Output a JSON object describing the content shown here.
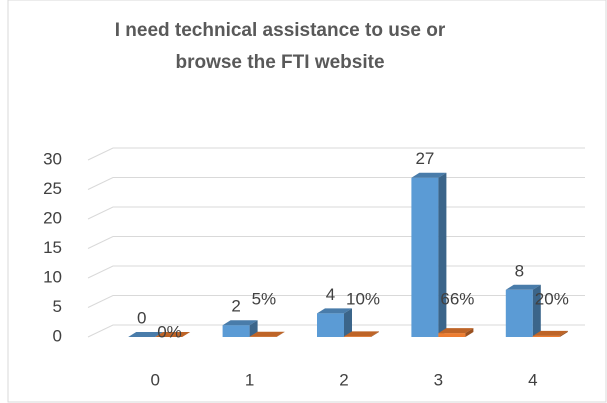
{
  "chart_data": {
    "type": "bar3d",
    "title": [
      "I need technical assistance to use or",
      "browse the FTI website"
    ],
    "categories": [
      "0",
      "1",
      "2",
      "3",
      "4"
    ],
    "series": [
      {
        "color": "#5b9bd5",
        "values": [
          0,
          2,
          4,
          27,
          8
        ]
      },
      {
        "color": "#ed7d31",
        "values": [
          0,
          0.05,
          0.1,
          0.66,
          0.2
        ],
        "value_labels": [
          "0%",
          "5%",
          "10%",
          "66%",
          "20%"
        ]
      }
    ],
    "ylim": [
      0,
      30
    ],
    "yticks": [
      0,
      5,
      10,
      15,
      20,
      25,
      30
    ],
    "grid": true
  }
}
